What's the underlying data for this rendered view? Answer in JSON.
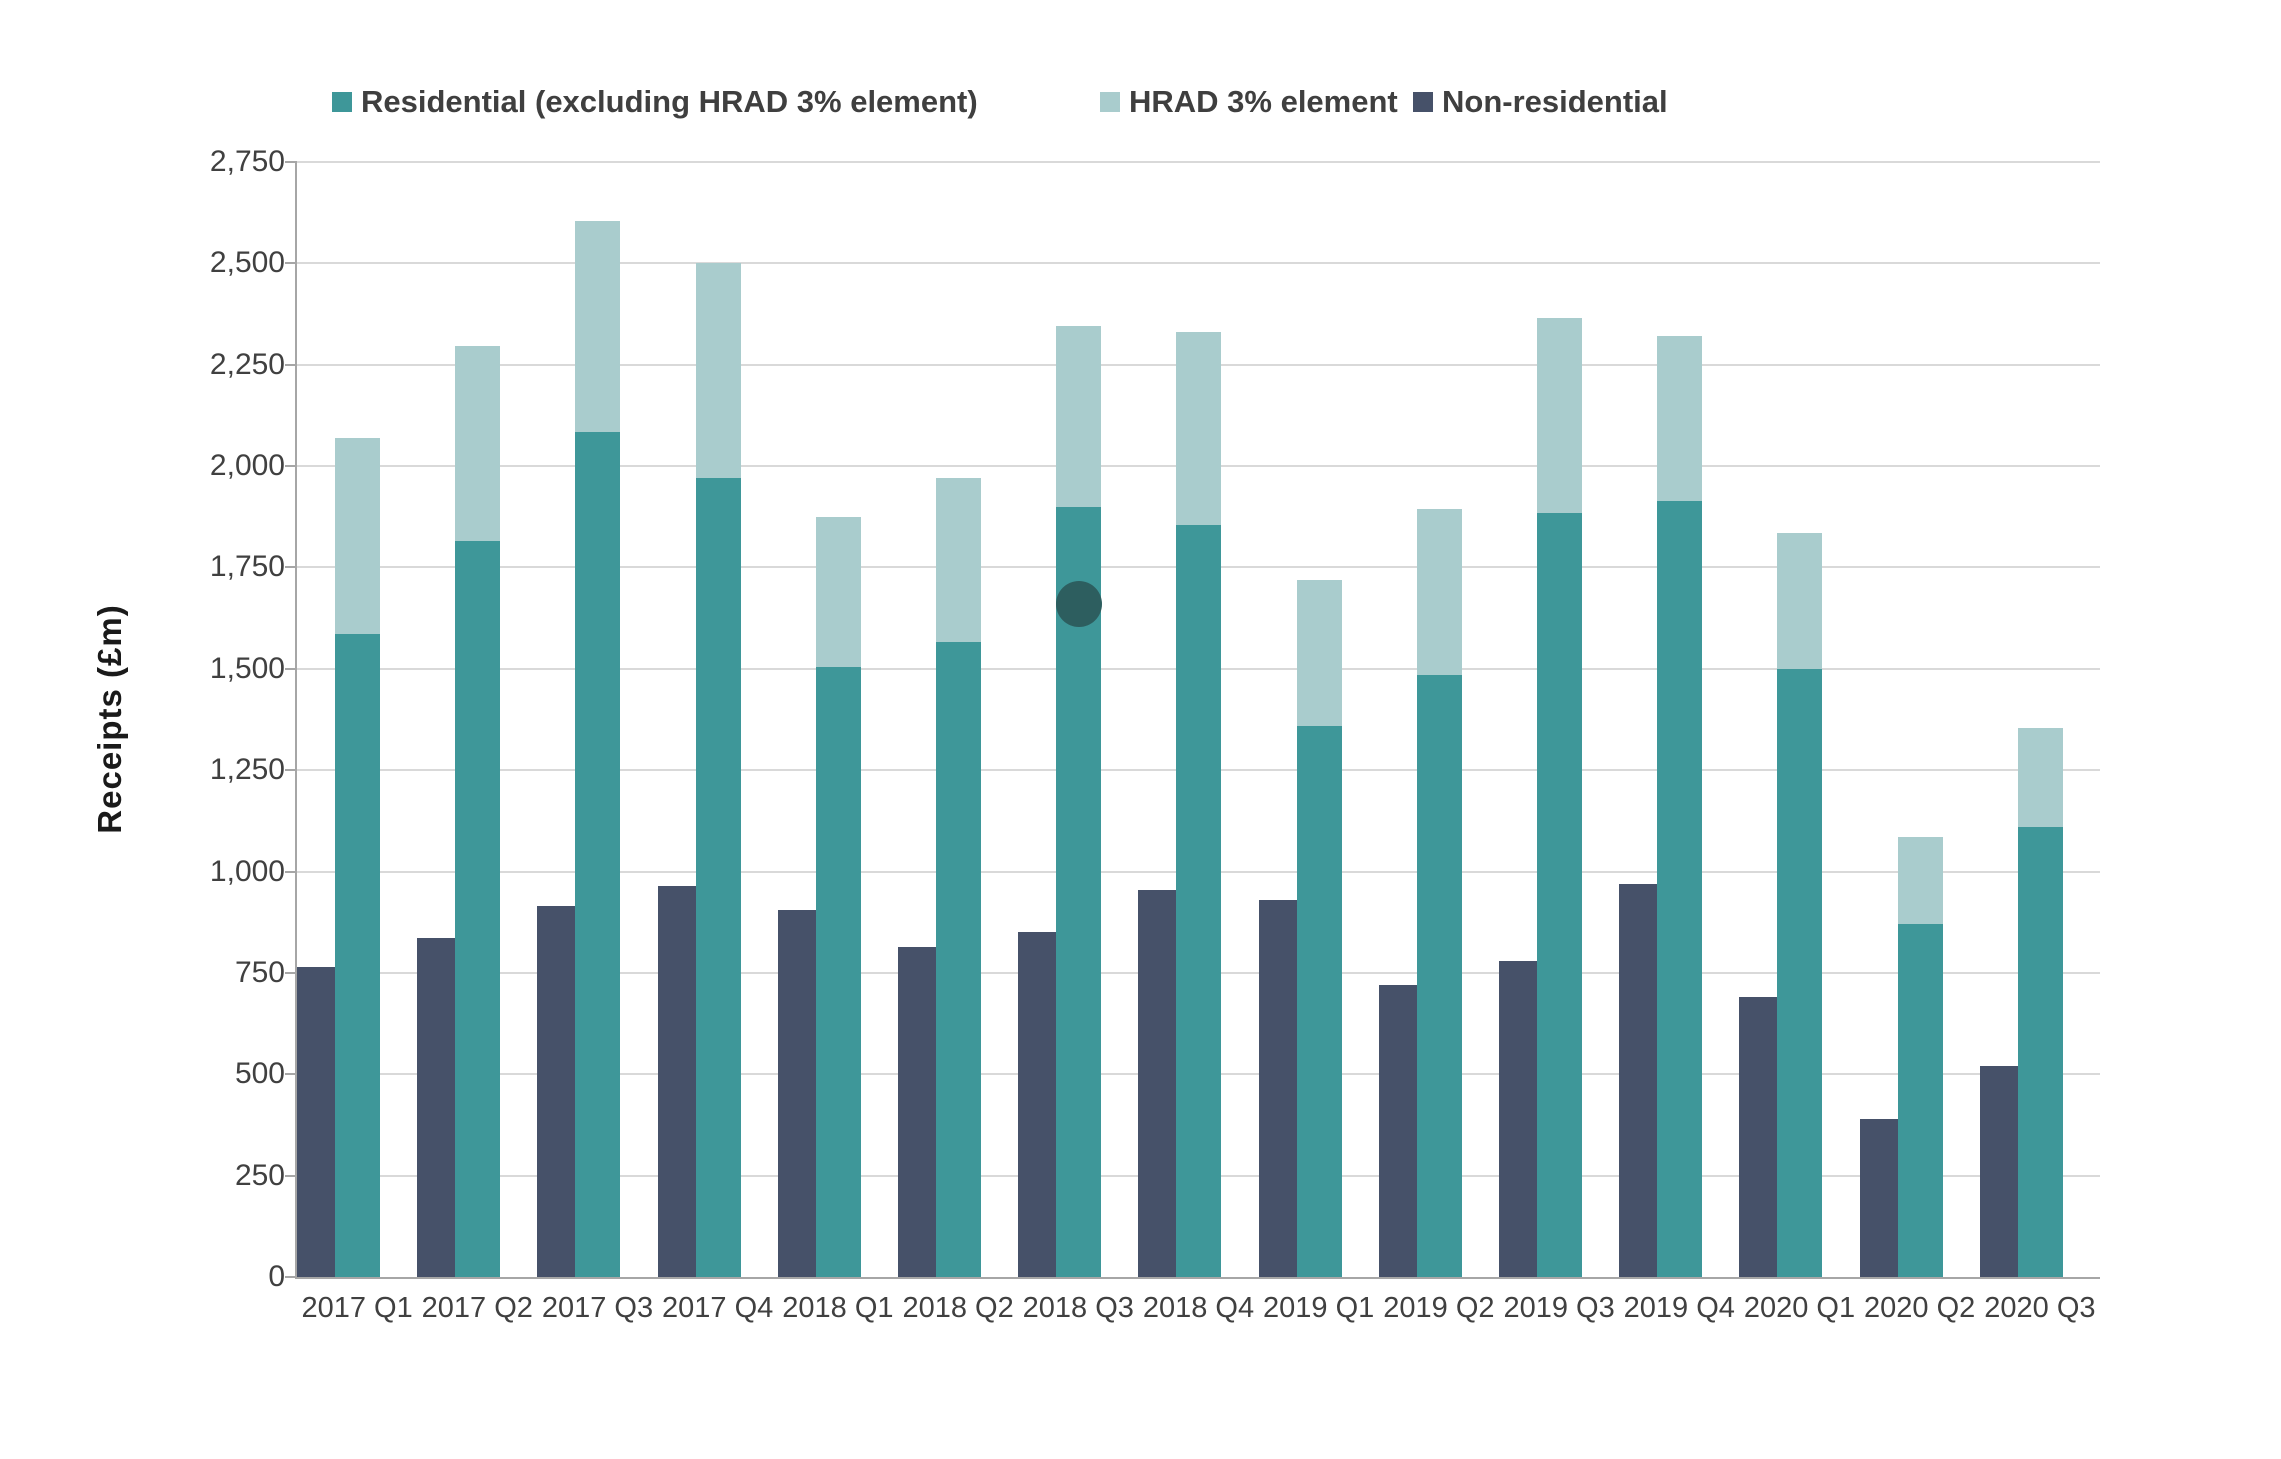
{
  "chart_data": {
    "type": "bar",
    "variant": "clustered-stacked",
    "title": "",
    "xlabel": "",
    "ylabel": "Receipts (£m)",
    "ylim": [
      0,
      2750
    ],
    "ytick_step": 250,
    "ytick_labels": [
      "0",
      "250",
      "500",
      "750",
      "1,000",
      "1,250",
      "1,500",
      "1,750",
      "2,000",
      "2,250",
      "2,500",
      "2,750"
    ],
    "grid": true,
    "legend_position": "top",
    "categories": [
      "2017 Q1",
      "2017 Q2",
      "2017 Q3",
      "2017 Q4",
      "2018 Q1",
      "2018 Q2",
      "2018 Q3",
      "2018 Q4",
      "2019 Q1",
      "2019 Q2",
      "2019 Q3",
      "2019 Q4",
      "2020 Q1",
      "2020 Q2",
      "2020 Q3"
    ],
    "series": [
      {
        "key": "residential",
        "name": "Residential (excluding HRAD 3% element)",
        "color": "#3E9799",
        "bar": 1,
        "stack_order": 0,
        "values": [
          1585,
          1815,
          2085,
          1970,
          1505,
          1565,
          1900,
          1855,
          1360,
          1485,
          1885,
          1915,
          1500,
          870,
          1110
        ]
      },
      {
        "key": "hrad",
        "name": "HRAD 3% element",
        "color": "#A9CCCD",
        "bar": 1,
        "stack_order": 1,
        "values": [
          485,
          480,
          520,
          530,
          370,
          405,
          445,
          475,
          360,
          410,
          480,
          405,
          335,
          215,
          245
        ]
      },
      {
        "key": "non_residential",
        "name": "Non-residential",
        "color": "#465169",
        "bar": 0,
        "stack_order": 0,
        "values": [
          765,
          835,
          915,
          965,
          905,
          815,
          850,
          955,
          930,
          720,
          780,
          970,
          690,
          390,
          520
        ]
      }
    ],
    "stacked_bar_totals": [
      2070,
      2295,
      2605,
      2500,
      1875,
      1970,
      2345,
      2330,
      1720,
      1895,
      2365,
      2320,
      1835,
      1085,
      1355
    ],
    "colors": {
      "gridline": "#d9d9d9",
      "axis": "#a6a6a6",
      "tick_text": "#404040",
      "legend_text": "#3f3f3f"
    },
    "annotations": {
      "cursor_dot": {
        "category": "2018 Q3",
        "category_index": 6,
        "approx_value": 1660,
        "color": "#2D5E5F",
        "radius_px": 23
      }
    }
  }
}
